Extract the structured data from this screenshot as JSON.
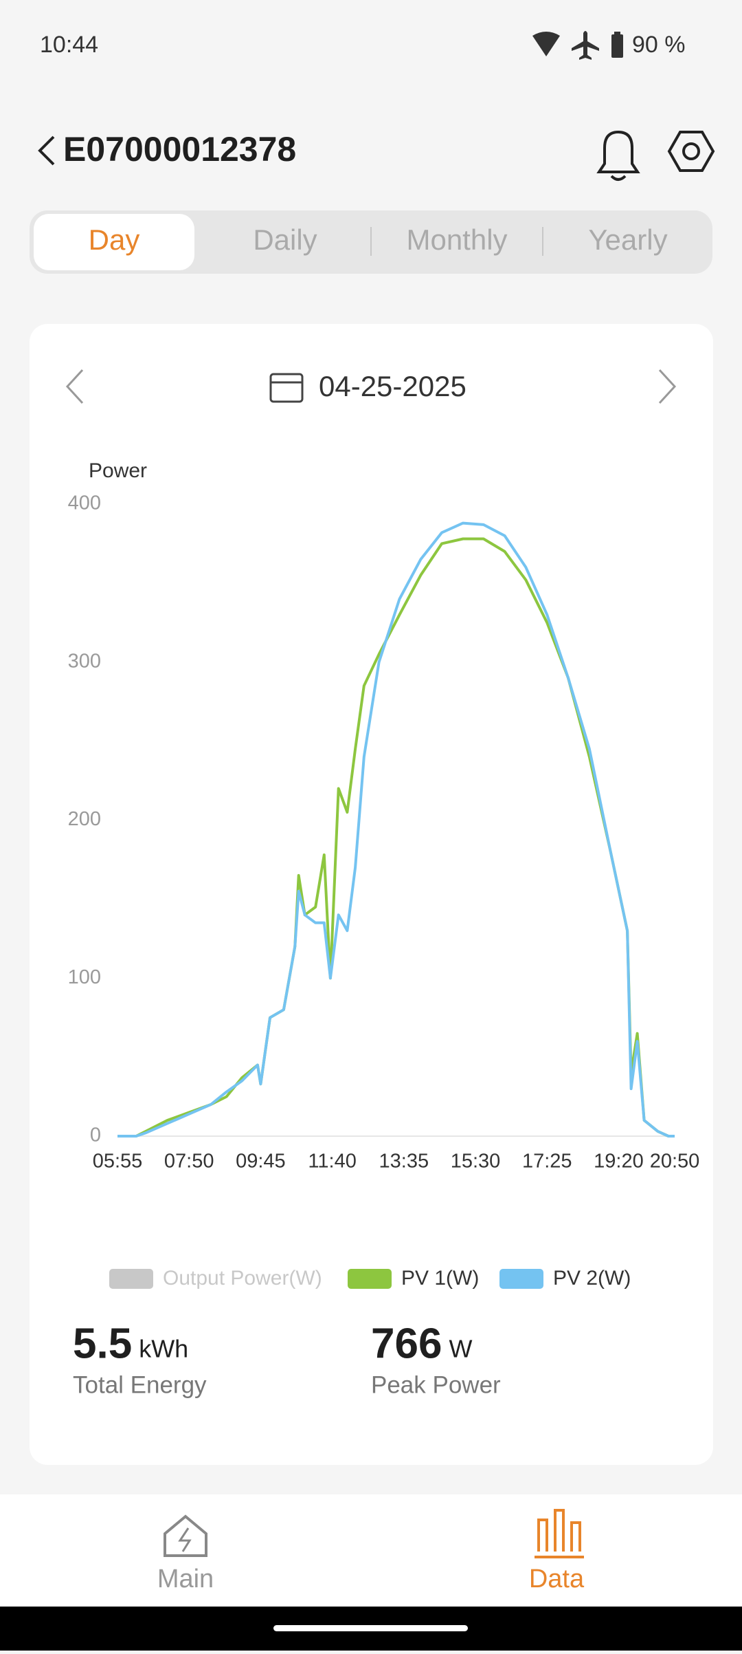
{
  "status_bar": {
    "time": "10:44",
    "battery": "90 %"
  },
  "header": {
    "title": "E07000012378"
  },
  "tabs": [
    "Day",
    "Daily",
    "Monthly",
    "Yearly"
  ],
  "date": "04-25-2025",
  "chart_data": {
    "type": "line",
    "y_axis_label": "Power",
    "x": [
      "05:55",
      "06:25",
      "06:40",
      "07:15",
      "07:50",
      "08:25",
      "08:50",
      "09:15",
      "09:40",
      "09:45",
      "10:00",
      "10:22",
      "10:40",
      "10:46",
      "10:56",
      "11:13",
      "11:27",
      "11:37",
      "11:50",
      "12:04",
      "12:17",
      "12:31",
      "12:55",
      "13:28",
      "14:02",
      "14:36",
      "15:10",
      "15:43",
      "16:17",
      "16:51",
      "17:25",
      "17:59",
      "18:33",
      "19:07",
      "19:34",
      "19:40",
      "19:50",
      "20:01",
      "20:23",
      "20:40",
      "20:50"
    ],
    "xlim": [
      "05:55",
      "20:50"
    ],
    "xticks": [
      "05:55",
      "07:50",
      "09:45",
      "11:40",
      "13:35",
      "15:30",
      "17:25",
      "19:20",
      "20:50"
    ],
    "ylim": [
      0,
      400
    ],
    "yticks": [
      0,
      100,
      200,
      300,
      400
    ],
    "series": [
      {
        "name": "Output Power(W)",
        "color": "#c8c8c8",
        "values": [
          null,
          null,
          null,
          null,
          null,
          null,
          null,
          null,
          null,
          null,
          null,
          null,
          null,
          null,
          null,
          null,
          null,
          null,
          null,
          null,
          null,
          null,
          null,
          null,
          null,
          null,
          null,
          null,
          null,
          null,
          null,
          null,
          null,
          null,
          null,
          null,
          null,
          null,
          null,
          null,
          null
        ]
      },
      {
        "name": "PV 1(W)",
        "color": "#8dc63f",
        "values": [
          0,
          0,
          3,
          10,
          15,
          20,
          25,
          37,
          45,
          33,
          75,
          80,
          120,
          165,
          140,
          145,
          178,
          100,
          220,
          205,
          245,
          285,
          305,
          330,
          355,
          375,
          378,
          378,
          370,
          352,
          325,
          290,
          240,
          180,
          130,
          40,
          65,
          10,
          3,
          0,
          0
        ]
      },
      {
        "name": "PV 2(W)",
        "color": "#74c3f1",
        "values": [
          0,
          0,
          2,
          8,
          14,
          20,
          28,
          35,
          45,
          33,
          75,
          80,
          120,
          155,
          140,
          135,
          135,
          100,
          140,
          130,
          170,
          240,
          300,
          340,
          365,
          382,
          388,
          387,
          380,
          360,
          330,
          290,
          245,
          180,
          130,
          30,
          60,
          10,
          3,
          0,
          0
        ]
      }
    ]
  },
  "summary": [
    {
      "value": "5.5",
      "unit": "kWh",
      "label": "Total Energy"
    },
    {
      "value": "766",
      "unit": "W",
      "label": "Peak Power"
    }
  ],
  "nav": [
    "Main",
    "Data"
  ]
}
